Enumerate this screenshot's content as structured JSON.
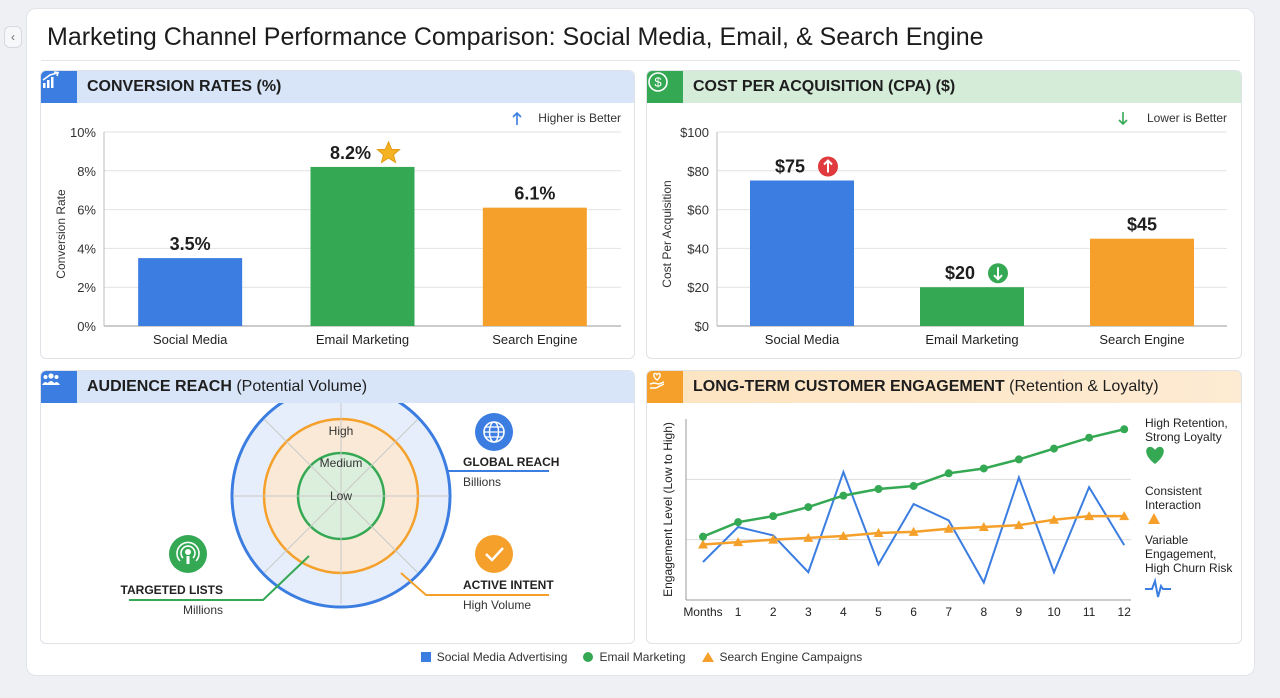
{
  "title": "Marketing Channel Performance Comparison: Social Media, Email, & Search Engine",
  "colors": {
    "social": "#3b7de0",
    "email": "#34a853",
    "search": "#f5a02a",
    "up_bad": "#e0393e",
    "down_good": "#34a853"
  },
  "panels": {
    "conversion": {
      "title": "CONVERSION RATES (%)",
      "icon": "chart-growth-icon"
    },
    "cpa": {
      "title": "COST PER ACQUISITION (CPA) ($)",
      "icon": "dollar-circle-icon"
    },
    "audience": {
      "title": "AUDIENCE REACH",
      "subtitle": " (Potential Volume)",
      "icon": "people-icon"
    },
    "engagement": {
      "title": "LONG-TERM CUSTOMER ENGAGEMENT",
      "subtitle": " (Retention & Loyalty)",
      "icon": "heart-hand-icon"
    }
  },
  "chart_data": [
    {
      "type": "bar",
      "title": "CONVERSION RATES (%)",
      "note": "Higher is Better",
      "ylabel": "Conversion Rate",
      "ylim": [
        0,
        10
      ],
      "yticks": [
        0,
        2,
        4,
        6,
        8,
        10
      ],
      "ytick_labels": [
        "0%",
        "2%",
        "4%",
        "6%",
        "8%",
        "10%"
      ],
      "grid": true,
      "categories": [
        "Social Media",
        "Email Marketing",
        "Search Engine"
      ],
      "values": [
        3.5,
        8.2,
        6.1
      ],
      "data_labels": [
        "3.5%",
        "8.2%",
        "6.1%"
      ],
      "badges": [
        "",
        "star-icon",
        ""
      ]
    },
    {
      "type": "bar",
      "title": "COST PER ACQUISITION (CPA) ($)",
      "note": "Lower is Better",
      "ylabel": "Cost Per Acquisition",
      "ylim": [
        0,
        100
      ],
      "yticks": [
        0,
        20,
        40,
        60,
        80,
        100
      ],
      "ytick_labels": [
        "$0",
        "$20",
        "$40",
        "$60",
        "$80",
        "$100"
      ],
      "grid": true,
      "categories": [
        "Social Media",
        "Email Marketing",
        "Search Engine"
      ],
      "values": [
        75,
        20,
        45
      ],
      "data_labels": [
        "$75",
        "$20",
        "$45"
      ],
      "badges": [
        "arrow-up-circle-icon",
        "arrow-down-circle-icon",
        ""
      ]
    },
    {
      "type": "line",
      "title": "LONG-TERM CUSTOMER ENGAGEMENT (Retention & Loyalty)",
      "ylabel": "Engagement Level (Low to High)",
      "xlabel_first": "Months",
      "x": [
        0,
        1,
        2,
        3,
        4,
        5,
        6,
        7,
        8,
        9,
        10,
        11,
        12
      ],
      "xtick_labels": [
        "Months",
        "1",
        "2",
        "3",
        "4",
        "5",
        "6",
        "7",
        "8",
        "9",
        "10",
        "11",
        "12"
      ],
      "ylim": [
        0,
        3
      ],
      "grid": true,
      "series": [
        {
          "name": "Email Marketing",
          "color": "#34a853",
          "marker": "circle",
          "values": [
            1.05,
            1.29,
            1.39,
            1.54,
            1.73,
            1.84,
            1.89,
            2.1,
            2.18,
            2.33,
            2.51,
            2.69,
            2.83
          ]
        },
        {
          "name": "Search Engine Campaigns",
          "color": "#f5a02a",
          "marker": "triangle",
          "values": [
            0.92,
            0.96,
            1.0,
            1.03,
            1.06,
            1.11,
            1.13,
            1.18,
            1.21,
            1.24,
            1.33,
            1.39,
            1.39
          ]
        },
        {
          "name": "Social Media Advertising",
          "color": "#3b7de0",
          "marker": "none",
          "values": [
            0.63,
            1.21,
            1.07,
            0.46,
            2.12,
            0.59,
            1.59,
            1.32,
            0.29,
            2.03,
            0.46,
            1.87,
            0.91
          ]
        }
      ],
      "annotations": [
        {
          "lines": [
            "High Retention,",
            "Strong Loyalty"
          ],
          "icon": "heart-icon"
        },
        {
          "lines": [
            "Consistent",
            "Interaction"
          ],
          "icon": "triangle-icon"
        },
        {
          "lines": [
            "Variable",
            "Engagement,",
            "High Churn Risk"
          ],
          "icon": "pulse-icon"
        }
      ]
    }
  ],
  "audience": {
    "rings": [
      "High",
      "Medium",
      "Low"
    ],
    "callouts": {
      "global": {
        "title": "GLOBAL REACH",
        "sub": "Billions",
        "icon": "globe-icon"
      },
      "active": {
        "title": "ACTIVE INTENT",
        "sub": "High Volume",
        "icon": "checkmark-icon"
      },
      "targeted": {
        "title": "TARGETED LISTS",
        "sub": "Millions",
        "icon": "broadcast-icon"
      }
    }
  },
  "legend": [
    {
      "label": "Social Media Advertising",
      "marker": "square",
      "color": "#3b7de0"
    },
    {
      "label": "Email Marketing",
      "marker": "circle",
      "color": "#34a853"
    },
    {
      "label": "Search Engine Campaigns",
      "marker": "triangle",
      "color": "#f5a02a"
    }
  ]
}
